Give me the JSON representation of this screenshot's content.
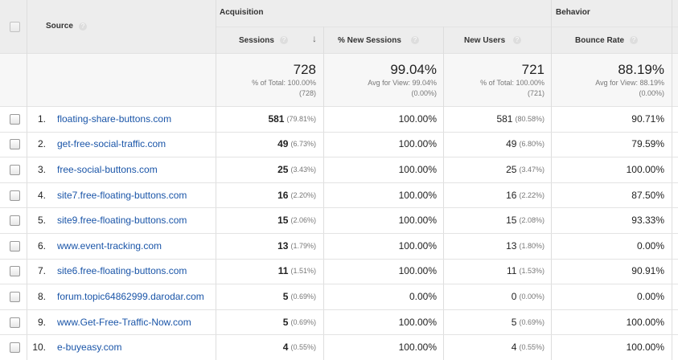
{
  "header": {
    "source": "Source",
    "groups": [
      "Acquisition",
      "Behavior"
    ],
    "columns": [
      "Sessions",
      "% New Sessions",
      "New Users",
      "Bounce Rate"
    ]
  },
  "summary": {
    "sessions": {
      "value": "728",
      "line1": "% of Total: 100.00%",
      "line2": "(728)"
    },
    "new_sessions": {
      "value": "99.04%",
      "line1": "Avg for View: 99.04%",
      "line2": "(0.00%)"
    },
    "new_users": {
      "value": "721",
      "line1": "% of Total: 100.00%",
      "line2": "(721)"
    },
    "bounce_rate": {
      "value": "88.19%",
      "line1": "Avg for View: 88.19%",
      "line2": "(0.00%)"
    }
  },
  "table": {
    "rows": [
      [
        "1.",
        "floating-share-buttons.com",
        "581",
        "(79.81%)",
        "100.00%",
        "581",
        "(80.58%)",
        "90.71%"
      ],
      [
        "2.",
        "get-free-social-traffic.com",
        "49",
        "(6.73%)",
        "100.00%",
        "49",
        "(6.80%)",
        "79.59%"
      ],
      [
        "3.",
        "free-social-buttons.com",
        "25",
        "(3.43%)",
        "100.00%",
        "25",
        "(3.47%)",
        "100.00%"
      ],
      [
        "4.",
        "site7.free-floating-buttons.com",
        "16",
        "(2.20%)",
        "100.00%",
        "16",
        "(2.22%)",
        "87.50%"
      ],
      [
        "5.",
        "site9.free-floating-buttons.com",
        "15",
        "(2.06%)",
        "100.00%",
        "15",
        "(2.08%)",
        "93.33%"
      ],
      [
        "6.",
        "www.event-tracking.com",
        "13",
        "(1.79%)",
        "100.00%",
        "13",
        "(1.80%)",
        "0.00%"
      ],
      [
        "7.",
        "site6.free-floating-buttons.com",
        "11",
        "(1.51%)",
        "100.00%",
        "11",
        "(1.53%)",
        "90.91%"
      ],
      [
        "8.",
        "forum.topic64862999.darodar.com",
        "5",
        "(0.69%)",
        "0.00%",
        "0",
        "(0.00%)",
        "0.00%"
      ],
      [
        "9.",
        "www.Get-Free-Traffic-Now.com",
        "5",
        "(0.69%)",
        "100.00%",
        "5",
        "(0.69%)",
        "100.00%"
      ],
      [
        "10.",
        "e-buyeasy.com",
        "4",
        "(0.55%)",
        "100.00%",
        "4",
        "(0.55%)",
        "100.00%"
      ]
    ]
  }
}
